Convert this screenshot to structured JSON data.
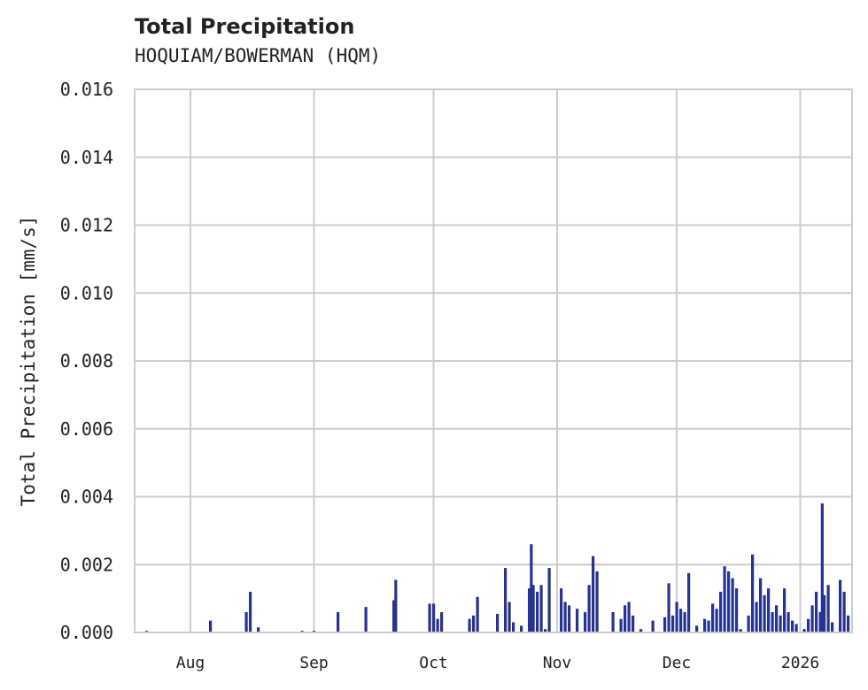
{
  "header": {
    "title": "Total Precipitation",
    "subtitle": "HOQUIAM/BOWERMAN (HQM)"
  },
  "axes": {
    "ylabel": "Total Precipitation [mm/s]",
    "yticks": [
      "0.000",
      "0.002",
      "0.004",
      "0.006",
      "0.008",
      "0.010",
      "0.012",
      "0.014",
      "0.016"
    ],
    "xticks": [
      "Aug",
      "Sep",
      "Oct",
      "Nov",
      "Dec",
      "2026"
    ]
  },
  "colors": {
    "bar": "#26338f",
    "grid": "#cccccc",
    "text": "#222222"
  },
  "chart_data": {
    "type": "bar",
    "title": "Total Precipitation",
    "subtitle": "HOQUIAM/BOWERMAN (HQM)",
    "xlabel": "",
    "ylabel": "Total Precipitation [mm/s]",
    "ylim": [
      0,
      0.016
    ],
    "xlim": [
      "2025-07-18",
      "2026-01-14"
    ],
    "x_tick_labels": [
      "Aug",
      "Sep",
      "Oct",
      "Nov",
      "Dec",
      "2026"
    ],
    "y_tick_labels": [
      "0.000",
      "0.002",
      "0.004",
      "0.006",
      "0.008",
      "0.010",
      "0.012",
      "0.014",
      "0.016"
    ],
    "grid": true,
    "legend": null,
    "series": [
      {
        "name": "Total Precipitation",
        "points": [
          [
            "2025-07-21",
            5e-05
          ],
          [
            "2025-08-06",
            0.00035
          ],
          [
            "2025-08-15",
            0.0006
          ],
          [
            "2025-08-16",
            0.0012
          ],
          [
            "2025-08-18",
            0.00015
          ],
          [
            "2025-08-29",
            5e-05
          ],
          [
            "2025-09-01",
            5e-05
          ],
          [
            "2025-09-07",
            0.0006
          ],
          [
            "2025-09-14",
            0.00075
          ],
          [
            "2025-09-21",
            0.00095
          ],
          [
            "2025-09-21T12",
            0.00155
          ],
          [
            "2025-09-30",
            0.00085
          ],
          [
            "2025-10-01",
            0.00085
          ],
          [
            "2025-10-02",
            0.0004
          ],
          [
            "2025-10-03",
            0.0006
          ],
          [
            "2025-10-10",
            0.0004
          ],
          [
            "2025-10-11",
            0.0005
          ],
          [
            "2025-10-12",
            0.00105
          ],
          [
            "2025-10-17",
            0.00055
          ],
          [
            "2025-10-19",
            0.0019
          ],
          [
            "2025-10-20",
            0.0009
          ],
          [
            "2025-10-21",
            0.0003
          ],
          [
            "2025-10-23",
            0.0002
          ],
          [
            "2025-10-25",
            0.0013
          ],
          [
            "2025-10-25T12",
            0.0026
          ],
          [
            "2025-10-26",
            0.0014
          ],
          [
            "2025-10-27",
            0.0012
          ],
          [
            "2025-10-28",
            0.0014
          ],
          [
            "2025-10-29",
            0.0001
          ],
          [
            "2025-10-30",
            0.0019
          ],
          [
            "2025-11-02",
            0.0013
          ],
          [
            "2025-11-03",
            0.0009
          ],
          [
            "2025-11-04",
            0.0008
          ],
          [
            "2025-11-06",
            0.0007
          ],
          [
            "2025-11-08",
            0.0006
          ],
          [
            "2025-11-09",
            0.0014
          ],
          [
            "2025-11-10",
            0.00225
          ],
          [
            "2025-11-11",
            0.0018
          ],
          [
            "2025-11-15",
            0.0006
          ],
          [
            "2025-11-17",
            0.0004
          ],
          [
            "2025-11-18",
            0.0008
          ],
          [
            "2025-11-19",
            0.0009
          ],
          [
            "2025-11-20",
            0.0005
          ],
          [
            "2025-11-22",
            0.0001
          ],
          [
            "2025-11-25",
            0.00035
          ],
          [
            "2025-11-28",
            0.00045
          ],
          [
            "2025-11-29",
            0.00145
          ],
          [
            "2025-11-30",
            0.0005
          ],
          [
            "2025-12-01",
            0.0009
          ],
          [
            "2025-12-02",
            0.0007
          ],
          [
            "2025-12-03",
            0.0006
          ],
          [
            "2025-12-04",
            0.00175
          ],
          [
            "2025-12-06",
            0.0002
          ],
          [
            "2025-12-08",
            0.0004
          ],
          [
            "2025-12-09",
            0.00035
          ],
          [
            "2025-12-10",
            0.00085
          ],
          [
            "2025-12-11",
            0.0007
          ],
          [
            "2025-12-12",
            0.0012
          ],
          [
            "2025-12-13",
            0.00195
          ],
          [
            "2025-12-14",
            0.0018
          ],
          [
            "2025-12-15",
            0.0016
          ],
          [
            "2025-12-16",
            0.0013
          ],
          [
            "2025-12-17",
            0.0001
          ],
          [
            "2025-12-19",
            0.0005
          ],
          [
            "2025-12-20",
            0.0023
          ],
          [
            "2025-12-21",
            0.0009
          ],
          [
            "2025-12-22",
            0.0016
          ],
          [
            "2025-12-23",
            0.0011
          ],
          [
            "2025-12-24",
            0.0013
          ],
          [
            "2025-12-25",
            0.0006
          ],
          [
            "2025-12-26",
            0.0008
          ],
          [
            "2025-12-27",
            0.0005
          ],
          [
            "2025-12-28",
            0.0013
          ],
          [
            "2025-12-29",
            0.0006
          ],
          [
            "2025-12-30",
            0.00035
          ],
          [
            "2025-12-31",
            0.00025
          ],
          [
            "2026-01-02",
            0.0001
          ],
          [
            "2026-01-03",
            0.0004
          ],
          [
            "2026-01-04",
            0.0008
          ],
          [
            "2026-01-05",
            0.0012
          ],
          [
            "2026-01-06",
            0.0006
          ],
          [
            "2026-01-06T12",
            0.0038
          ],
          [
            "2026-01-07",
            0.0011
          ],
          [
            "2026-01-08",
            0.0014
          ],
          [
            "2026-01-09",
            0.0003
          ],
          [
            "2026-01-11",
            0.00155
          ],
          [
            "2026-01-12",
            0.0012
          ],
          [
            "2026-01-13",
            0.0005
          ]
        ]
      }
    ]
  }
}
